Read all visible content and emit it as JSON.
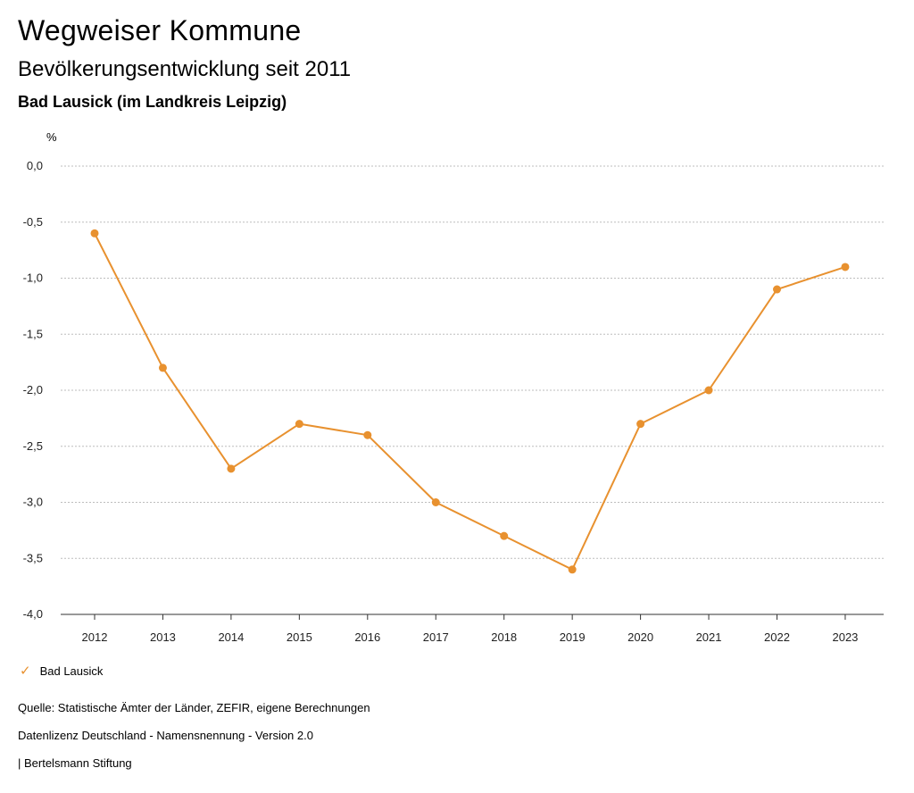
{
  "title": "Wegweiser Kommune",
  "subtitle": "Bevölkerungsentwicklung seit 2011",
  "region": "Bad Lausick (im Landkreis Leipzig)",
  "chart_data": {
    "type": "line",
    "ylabel": "%",
    "ylim": [
      -4.0,
      0.0
    ],
    "yticks": [
      0.0,
      -0.5,
      -1.0,
      -1.5,
      -2.0,
      -2.5,
      -3.0,
      -3.5,
      -4.0
    ],
    "ytick_labels": [
      "0,0",
      "-0,5",
      "-1,0",
      "-1,5",
      "-2,0",
      "-2,5",
      "-3,0",
      "-3,5",
      "-4,0"
    ],
    "categories": [
      "2012",
      "2013",
      "2014",
      "2015",
      "2016",
      "2017",
      "2018",
      "2019",
      "2020",
      "2021",
      "2022",
      "2023"
    ],
    "grid": true,
    "series": [
      {
        "name": "Bad Lausick",
        "color": "#e8912f",
        "values": [
          -0.6,
          -1.8,
          -2.7,
          -2.3,
          -2.4,
          -3.0,
          -3.3,
          -3.6,
          -2.3,
          -2.0,
          -1.1,
          -0.9
        ]
      }
    ]
  },
  "legend": {
    "label": "Bad Lausick",
    "symbol": "✓"
  },
  "footer": {
    "source": "Quelle: Statistische Ämter der Länder, ZEFIR, eigene Berechnungen",
    "license": "Datenlizenz Deutschland - Namensnennung - Version 2.0",
    "brand": "| Bertelsmann Stiftung"
  }
}
